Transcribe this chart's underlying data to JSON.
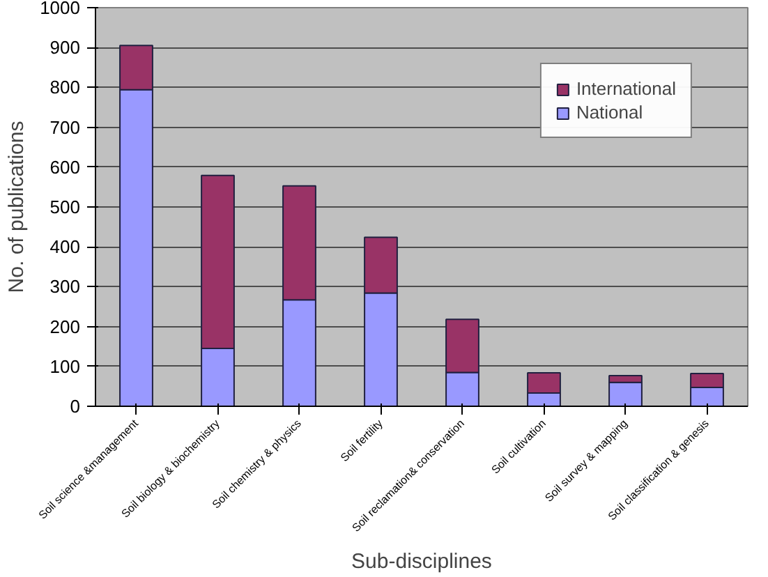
{
  "chart_data": {
    "type": "bar",
    "stacked": true,
    "xlabel": "Sub-disciplines",
    "ylabel": "No. of publications",
    "categories": [
      "Soil science &management",
      "Soil biology & biochemistry",
      "Soil chemistry & physics",
      "Soil fertility",
      "Soil reclamation& conservation",
      "Soil cultivation",
      "Soil survey & mapping",
      "Soil classification & genesis"
    ],
    "series": [
      {
        "name": "National",
        "color": "#9999ff",
        "values": [
          794,
          145,
          267,
          284,
          85,
          33,
          60,
          47
        ]
      },
      {
        "name": "International",
        "color": "#993366",
        "values": [
          111,
          434,
          286,
          140,
          133,
          51,
          17,
          35
        ]
      }
    ],
    "ylim": [
      0,
      1000
    ],
    "yticks": [
      0,
      100,
      200,
      300,
      400,
      500,
      600,
      700,
      800,
      900,
      1000
    ],
    "grid": "y",
    "legend": "top right"
  }
}
